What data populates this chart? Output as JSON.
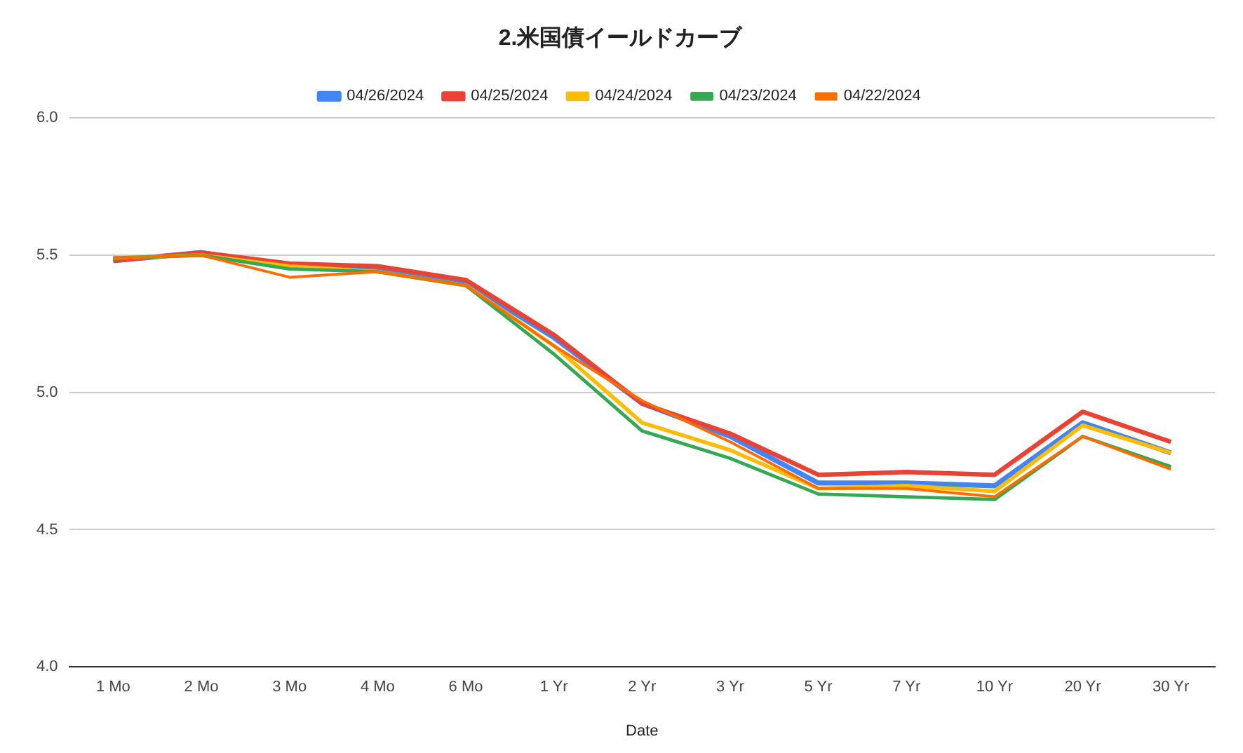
{
  "chart_data": {
    "type": "line",
    "title": "2.米国債イールドカーブ",
    "xlabel": "Date",
    "categories": [
      "1 Mo",
      "2 Mo",
      "3 Mo",
      "4 Mo",
      "6 Mo",
      "1 Yr",
      "2 Yr",
      "3 Yr",
      "5 Yr",
      "7 Yr",
      "10 Yr",
      "20 Yr",
      "30 Yr"
    ],
    "series": [
      {
        "name": "04/26/2024",
        "color": "#4285f4",
        "values": [
          5.48,
          5.51,
          5.46,
          5.45,
          5.4,
          5.2,
          4.96,
          4.84,
          4.67,
          4.67,
          4.66,
          4.89,
          4.78
        ]
      },
      {
        "name": "04/25/2024",
        "color": "#ea4335",
        "values": [
          5.48,
          5.51,
          5.47,
          5.46,
          5.41,
          5.21,
          4.96,
          4.85,
          4.7,
          4.71,
          4.7,
          4.93,
          4.82
        ]
      },
      {
        "name": "04/24/2024",
        "color": "#fbbc04",
        "values": [
          5.49,
          5.5,
          5.46,
          5.44,
          5.39,
          5.17,
          4.89,
          4.79,
          4.65,
          4.66,
          4.64,
          4.88,
          4.78
        ]
      },
      {
        "name": "04/23/2024",
        "color": "#34a853",
        "values": [
          5.49,
          5.5,
          5.45,
          5.44,
          5.39,
          5.14,
          4.86,
          4.76,
          4.63,
          4.62,
          4.61,
          4.84,
          4.73
        ]
      },
      {
        "name": "04/22/2024",
        "color": "#ff6d01",
        "values": [
          5.49,
          5.5,
          5.42,
          5.44,
          5.39,
          5.17,
          4.97,
          4.82,
          4.65,
          4.65,
          4.62,
          4.84,
          4.72
        ]
      }
    ],
    "ylim": [
      4.0,
      6.0
    ],
    "yticks": [
      {
        "value": 4.0,
        "label": "4.0"
      },
      {
        "value": 4.5,
        "label": "4.5"
      },
      {
        "value": 5.0,
        "label": "5.0"
      },
      {
        "value": 5.5,
        "label": "5.5"
      },
      {
        "value": 6.0,
        "label": "6.0"
      }
    ],
    "grid": "y",
    "legend": "top",
    "marker": "none",
    "line_style": "solid"
  }
}
